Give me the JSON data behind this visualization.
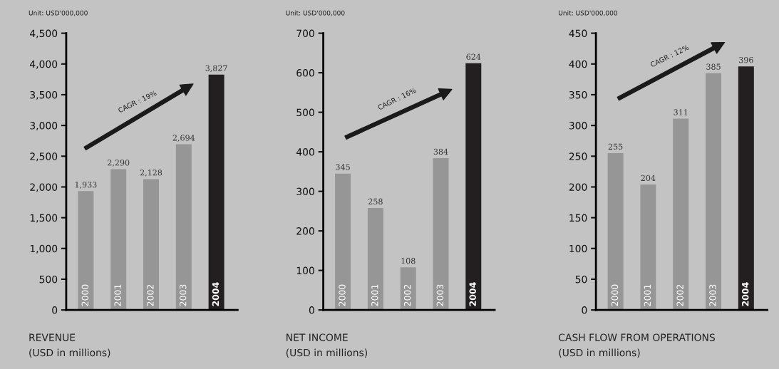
{
  "chart_data": [
    {
      "type": "bar",
      "title": "REVENUE",
      "subtitle": "(USD in millions)",
      "annotations": [
        "Unit: USD'000,000",
        "CAGR : 19%"
      ],
      "categories": [
        "2000",
        "2001",
        "2002",
        "2003",
        "2004"
      ],
      "values": [
        1933,
        2290,
        2128,
        2694,
        3827
      ],
      "value_labels": [
        "1,933",
        "2,290",
        "2,128",
        "2,694",
        "3,827"
      ],
      "colors": [
        "#969696",
        "#969696",
        "#969696",
        "#969696",
        "#231f20"
      ],
      "ylim": [
        0,
        4500
      ],
      "yticks": [
        0,
        {
          "value": 500,
          "label": "500"
        },
        {
          "value": 1000,
          "label": "1,000"
        },
        {
          "value": 1500,
          "label": "1,500"
        },
        {
          "value": 2000,
          "label": "2,000"
        },
        {
          "value": 2500,
          "label": "2,500"
        },
        {
          "value": 3000,
          "label": "3,000"
        },
        {
          "value": 3500,
          "label": "3,500"
        },
        {
          "value": 4000,
          "label": "4,000"
        },
        {
          "value": 4500,
          "label": "4,500"
        }
      ],
      "grid": false,
      "legend": false
    },
    {
      "type": "bar",
      "title": "NET INCOME",
      "subtitle": "(USD in millions)",
      "annotations": [
        "Unit: USD'000,000",
        "CAGR : 16%"
      ],
      "categories": [
        "2000",
        "2001",
        "2002",
        "2003",
        "2004"
      ],
      "values": [
        345,
        258,
        108,
        384,
        624
      ],
      "data_labels": true,
      "colors": [
        "#969696",
        "#969696",
        "#969696",
        "#969696",
        "#231f20"
      ],
      "ylim": [
        0,
        700
      ],
      "yticks": [
        0,
        100,
        200,
        300,
        400,
        500,
        600,
        700
      ],
      "grid": false,
      "legend": false
    },
    {
      "type": "bar",
      "title": "CASH FLOW FROM OPERATIONS",
      "subtitle": "(USD in millions)",
      "annotations": [
        "Unit: USD'000,000",
        "CAGR : 12%"
      ],
      "categories": [
        "2000",
        "2001",
        "2002",
        "2003",
        "2004"
      ],
      "values": [
        255,
        204,
        311,
        385,
        396
      ],
      "data_labels": true,
      "colors": [
        "#969696",
        "#969696",
        "#969696",
        "#969696",
        "#231f20"
      ],
      "ylim": [
        0,
        450
      ],
      "yticks": [
        0,
        50,
        100,
        150,
        200,
        250,
        300,
        350,
        400,
        450
      ],
      "grid": false,
      "legend": false
    }
  ]
}
